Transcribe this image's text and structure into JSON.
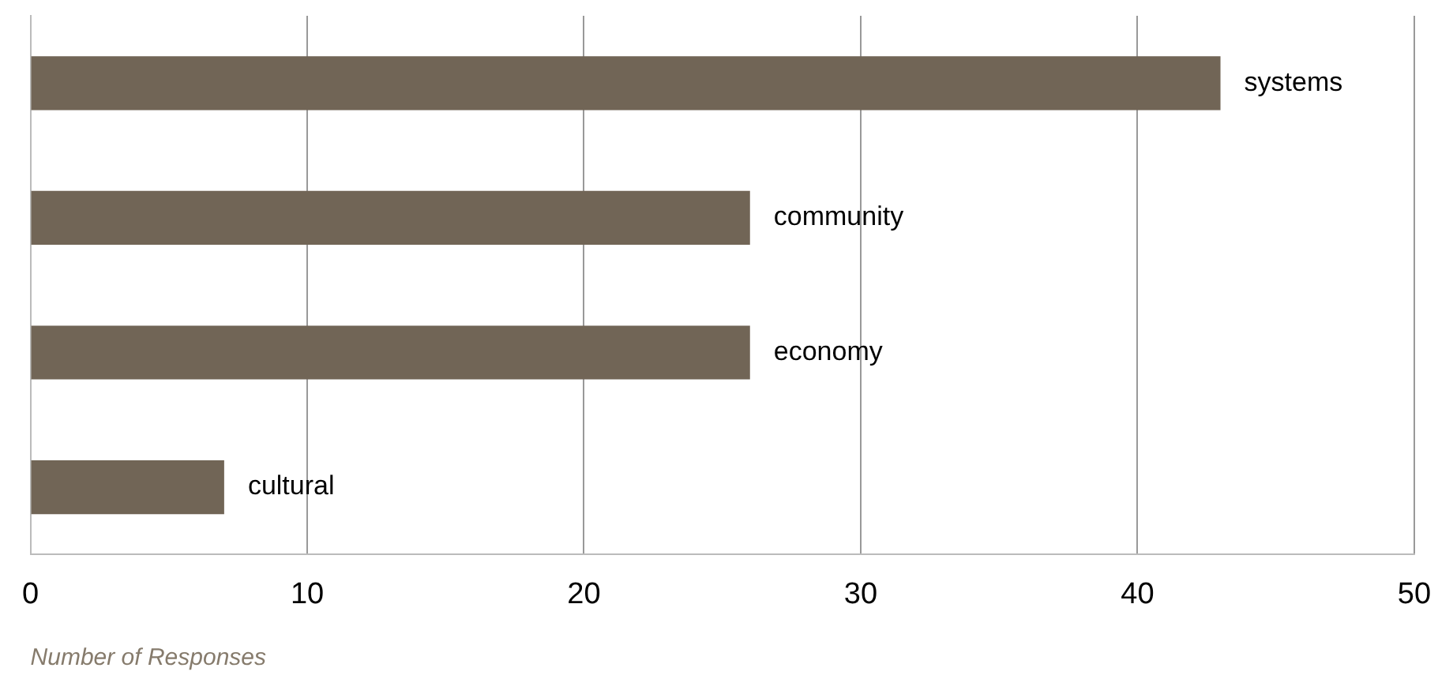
{
  "chart_data": {
    "type": "bar",
    "orientation": "horizontal",
    "xlabel": "Number of Responses",
    "categories": [
      "systems",
      "community",
      "economy",
      "cultural"
    ],
    "values": [
      43,
      26,
      26,
      7
    ],
    "color": "#716556",
    "xlim": [
      0,
      50
    ],
    "xticks": [
      0,
      10,
      20,
      30,
      40,
      50
    ],
    "grid": "x",
    "tick_labels": "x"
  }
}
